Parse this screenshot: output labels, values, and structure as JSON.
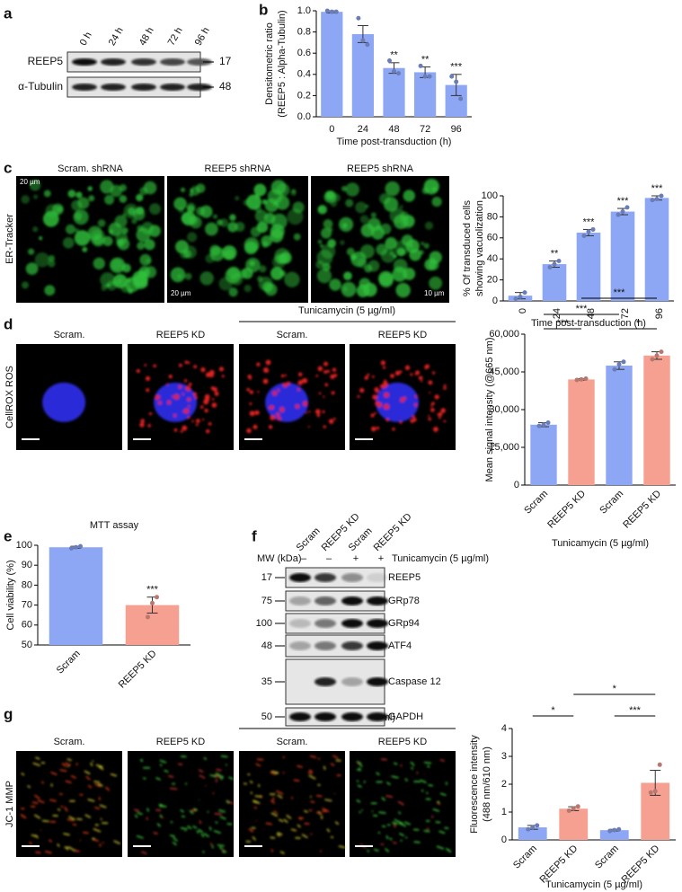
{
  "chart_data": [
    {
      "type": "bar",
      "categories": [
        "0",
        "24",
        "48",
        "72",
        "96"
      ],
      "values": [
        0.99,
        0.78,
        0.46,
        0.42,
        0.3
      ],
      "errors": [
        0.01,
        0.08,
        0.05,
        0.05,
        0.1
      ],
      "points": [
        [
          1.0,
          0.99,
          0.99
        ],
        [
          0.93,
          0.72,
          0.68
        ],
        [
          0.53,
          0.43,
          0.41
        ],
        [
          0.48,
          0.38,
          0.38
        ],
        [
          0.38,
          0.33,
          0.17
        ]
      ],
      "significance": [
        null,
        null,
        "**",
        "**",
        "***"
      ],
      "color": "#8ea7f4",
      "ylim": [
        0,
        1.0
      ],
      "yticks": [
        {
          "value": 0,
          "label": "0.0"
        },
        0.2,
        0.4,
        0.6,
        0.8,
        {
          "value": 1.0,
          "label": "1.0"
        }
      ],
      "ylabel": [
        "Densitometric ratio",
        "(REEP5 : Alpha-Tubulin)"
      ],
      "xlabel": "Time post-transduction (h)"
    },
    {
      "type": "bar",
      "categories": [
        "0",
        "24",
        "48",
        "72",
        "96"
      ],
      "values": [
        5,
        35,
        65,
        85,
        98
      ],
      "errors": [
        3,
        3,
        3,
        3,
        2
      ],
      "points": [
        [
          2,
          4,
          8
        ],
        [
          32,
          35,
          38
        ],
        [
          62,
          66,
          68
        ],
        [
          82,
          85,
          89
        ],
        [
          96,
          97,
          100
        ]
      ],
      "significance": [
        null,
        "**",
        "***",
        "***",
        "***"
      ],
      "color": "#8ea7f4",
      "ylim": [
        0,
        100
      ],
      "yticks": [
        0,
        20,
        40,
        60,
        80,
        100
      ],
      "ylabel": [
        "% Of transduced cells",
        "showing vacuolization"
      ],
      "xlabel": "Time post-transduction (h)"
    },
    {
      "type": "bar",
      "categories": [
        "Scram",
        "REEP5 KD",
        "Scram",
        "REEP5 KD"
      ],
      "values": [
        24000,
        42000,
        47500,
        51500
      ],
      "errors": [
        800,
        300,
        1500,
        1500
      ],
      "points": [
        [
          23500,
          24000,
          24800
        ],
        [
          41800,
          42000,
          42300
        ],
        [
          46000,
          48000,
          49000
        ],
        [
          50000,
          51500,
          53000
        ]
      ],
      "colors": [
        "#8ea7f4",
        "#f6a092",
        "#8ea7f4",
        "#f6a092"
      ],
      "ylim": [
        0,
        60000
      ],
      "yticks": [
        0,
        {
          "value": 15000,
          "label": "15,000"
        },
        {
          "value": 30000,
          "label": "30,000"
        },
        {
          "value": 45000,
          "label": "45,000"
        },
        {
          "value": 60000,
          "label": "60,000"
        }
      ],
      "comparisons": [
        {
          "between": [
            1,
            3
          ],
          "label": "***"
        },
        {
          "between": [
            0,
            2
          ],
          "label": "***"
        },
        {
          "between": [
            0,
            1
          ],
          "label": "***"
        },
        {
          "between": [
            2,
            3
          ],
          "label": "*"
        }
      ],
      "ylabel": [
        "Mean signal intensity (@665 nm)"
      ],
      "xlabel": "Tunicamycin (5 µg/ml)"
    },
    {
      "type": "bar",
      "title": "MTT assay",
      "categories": [
        "Scram",
        "REEP5 KD"
      ],
      "values": [
        99,
        70
      ],
      "errors": [
        0.5,
        4
      ],
      "points": [
        [
          98.5,
          99,
          99.5
        ],
        [
          64,
          71,
          74
        ]
      ],
      "significance": [
        null,
        "***"
      ],
      "colors": [
        "#8ea7f4",
        "#f6a092"
      ],
      "ylim": [
        50,
        100
      ],
      "yticks": [
        50,
        60,
        70,
        80,
        90,
        100
      ],
      "ylabel": [
        "Cell viability (%)"
      ]
    },
    {
      "type": "bar",
      "categories": [
        "Scram",
        "REEP5 KD",
        "Scram",
        "REEP5 KD"
      ],
      "values": [
        0.45,
        1.12,
        0.35,
        2.05
      ],
      "errors": [
        0.07,
        0.07,
        0.03,
        0.45
      ],
      "points": [
        [
          0.38,
          0.45,
          0.52
        ],
        [
          1.05,
          1.12,
          1.2
        ],
        [
          0.32,
          0.35,
          0.38
        ],
        [
          1.7,
          1.75,
          2.7
        ]
      ],
      "colors": [
        "#8ea7f4",
        "#f6a092",
        "#8ea7f4",
        "#f6a092"
      ],
      "ylim": [
        0,
        4
      ],
      "yticks": [
        0,
        1,
        2,
        3,
        4
      ],
      "comparisons": [
        {
          "between": [
            1,
            3
          ],
          "label": "*"
        },
        {
          "between": [
            0,
            1
          ],
          "label": "*"
        },
        {
          "between": [
            2,
            3
          ],
          "label": "***"
        }
      ],
      "ylabel": [
        "Fluorescence intensity",
        "(488 nm/610 nm)"
      ],
      "xlabel": "Tunicamycin (5 µg/ml)"
    }
  ],
  "figure": {
    "panel_labels": [
      "a",
      "b",
      "c",
      "d",
      "e",
      "f",
      "g"
    ],
    "blot_a": {
      "lanes": [
        "0 h",
        "24 h",
        "48 h",
        "72 h",
        "96 h"
      ],
      "rows": [
        {
          "label": "REEP5",
          "mw": "17"
        },
        {
          "label": "α-Tubulin",
          "mw": "48"
        }
      ]
    },
    "panel_c": {
      "titles": [
        "Scram. shRNA",
        "REEP5 shRNA",
        "REEP5 shRNA"
      ],
      "stain": "ER-Tracker",
      "scale_bars": [
        "20 µm",
        "20 µm",
        "10 µm"
      ]
    },
    "panel_d": {
      "treatment": "Tunicamycin (5 µg/ml)",
      "titles": [
        "Scram.",
        "REEP5 KD",
        "Scram.",
        "REEP5 KD"
      ],
      "stain": "CellROX ROS"
    },
    "blot_f": {
      "lanes": [
        "Scram",
        "REEP5 KD",
        "Scram",
        "REEP5 KD"
      ],
      "mw_header": "MW (kDa)",
      "signs": [
        "–",
        "–",
        "+",
        "+"
      ],
      "treatment": "Tunicamycin (5 µg/ml)",
      "rows": [
        {
          "label": "REEP5",
          "mw": "17"
        },
        {
          "label": "GRp78",
          "mw": "75"
        },
        {
          "label": "GRp94",
          "mw": "100"
        },
        {
          "label": "ATF4",
          "mw": "48"
        },
        {
          "label": "Caspase 12",
          "mw": "35"
        },
        {
          "label": "GAPDH",
          "mw": "50"
        }
      ]
    },
    "panel_g": {
      "treatment": "Tunicamycin (5 µg/ml)",
      "titles": [
        "Scram.",
        "REEP5 KD",
        "Scram.",
        "REEP5 KD"
      ],
      "stain": "JC-1 MMP"
    }
  }
}
